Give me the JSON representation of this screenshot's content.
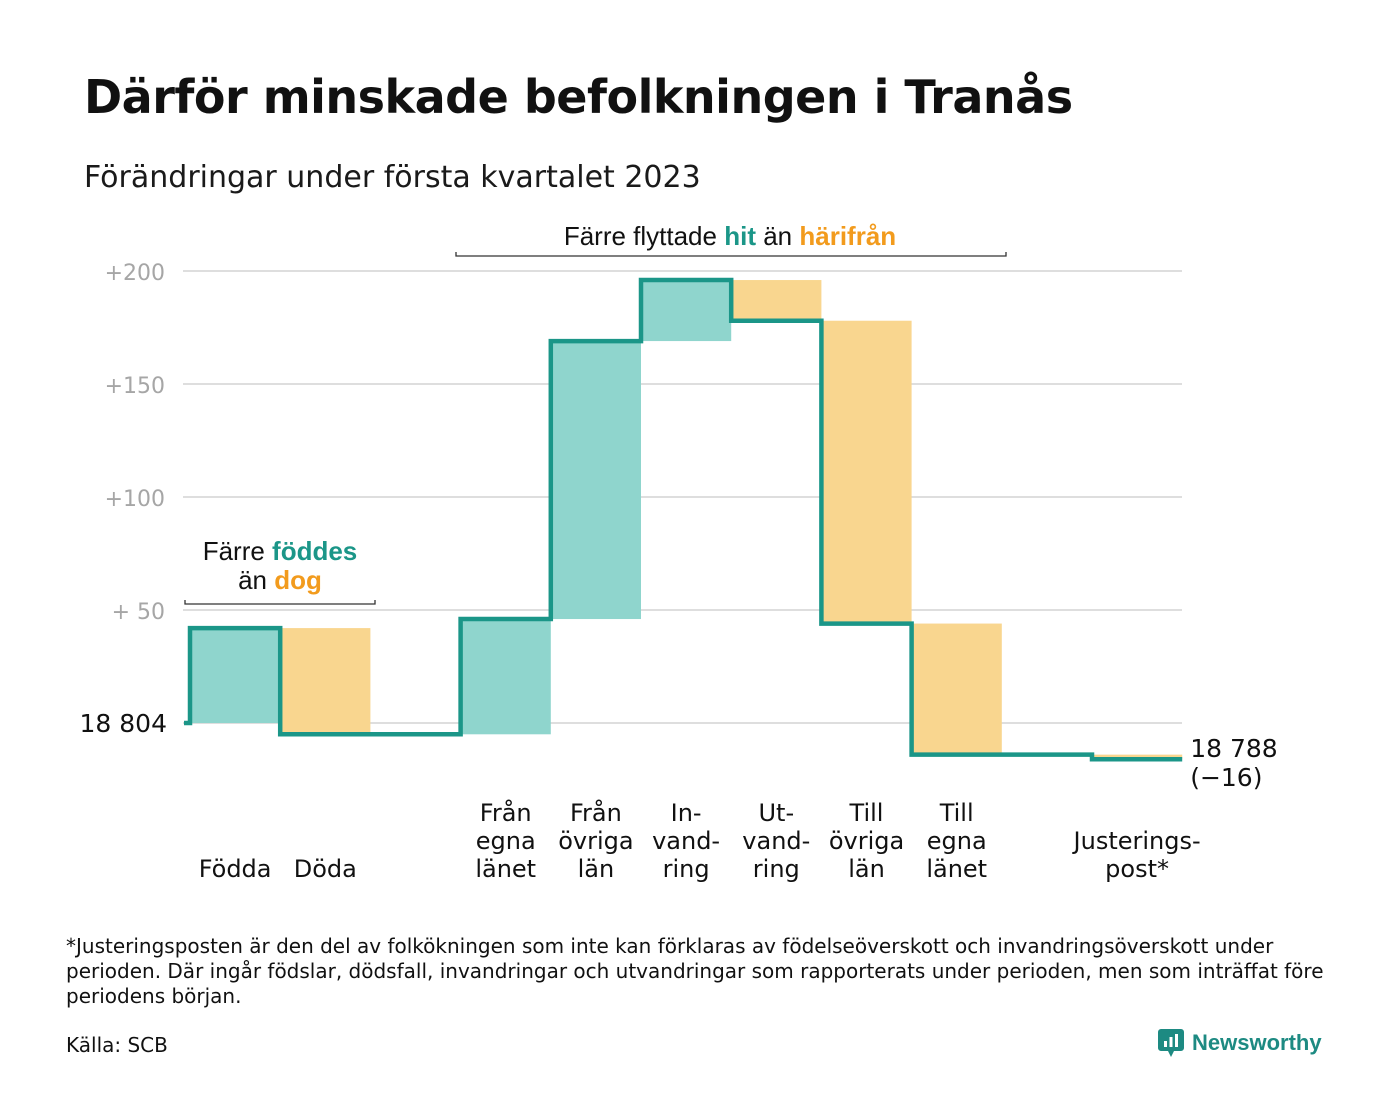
{
  "title": "Därför minskade befolkningen i Tranås",
  "subtitle": "Förändringar under första kvartalet 2023",
  "colors": {
    "increase": "#8fd5cd",
    "decrease": "#f9d68f",
    "line": "#1b9688",
    "teal_text": "#1b9688",
    "orange_text": "#f29b1d",
    "grid": "#dedede",
    "axis_text": "#a6a6a6"
  },
  "annotations": {
    "births_deaths": {
      "line1_prefix": "Färre ",
      "line1_highlight": "föddes",
      "line2_prefix": "än ",
      "line2_highlight": "dog"
    },
    "migration": {
      "prefix": "Färre flyttade ",
      "highlight1": "hit",
      "middle": " än ",
      "highlight2": "härifrån"
    }
  },
  "chart_data": {
    "type": "waterfall",
    "title": "Därför minskade befolkningen i Tranås",
    "subtitle": "Förändringar under första kvartalet 2023",
    "ylim": [
      -27,
      202
    ],
    "yticks": [
      {
        "value": 0,
        "label": "18 804"
      },
      {
        "value": 50,
        "label": "+ 50"
      },
      {
        "value": 100,
        "label": "+100"
      },
      {
        "value": 150,
        "label": "+150"
      },
      {
        "value": 200,
        "label": "+200"
      }
    ],
    "start_label": "18 804",
    "end_label_lines": [
      "18 788",
      "(−16)"
    ],
    "steps": [
      {
        "label_lines": [
          "Födda"
        ],
        "delta": 42,
        "kind": "increase"
      },
      {
        "label_lines": [
          "Döda"
        ],
        "delta": -47,
        "kind": "decrease"
      },
      {
        "label_lines": [],
        "delta": 0,
        "kind": "gap"
      },
      {
        "label_lines": [
          "Från",
          "egna",
          "länet"
        ],
        "delta": 51,
        "kind": "increase"
      },
      {
        "label_lines": [
          "Från",
          "övriga",
          "län"
        ],
        "delta": 123,
        "kind": "increase"
      },
      {
        "label_lines": [
          "In-",
          "vand-",
          "ring"
        ],
        "delta": 27,
        "kind": "increase"
      },
      {
        "label_lines": [
          "Ut-",
          "vand-",
          "ring"
        ],
        "delta": -18,
        "kind": "decrease"
      },
      {
        "label_lines": [
          "Till",
          "övriga",
          "län"
        ],
        "delta": -134,
        "kind": "decrease"
      },
      {
        "label_lines": [
          "Till",
          "egna",
          "länet"
        ],
        "delta": -58,
        "kind": "decrease"
      },
      {
        "label_lines": [],
        "delta": 0,
        "kind": "gap"
      },
      {
        "label_lines": [
          "Justerings-",
          "post*"
        ],
        "delta": -2,
        "kind": "decrease"
      }
    ],
    "end_value": -16
  },
  "footnote": "*Justeringsposten är den del av folkökningen som inte kan förklaras av födelseöverskott och invandringsöverskott under perioden. Där ingår födslar, dödsfall, invandringar och utvandringar som rapporterats under perioden, men som inträffat före periodens början.",
  "source": "Källa: SCB",
  "brand": "Newsworthy"
}
